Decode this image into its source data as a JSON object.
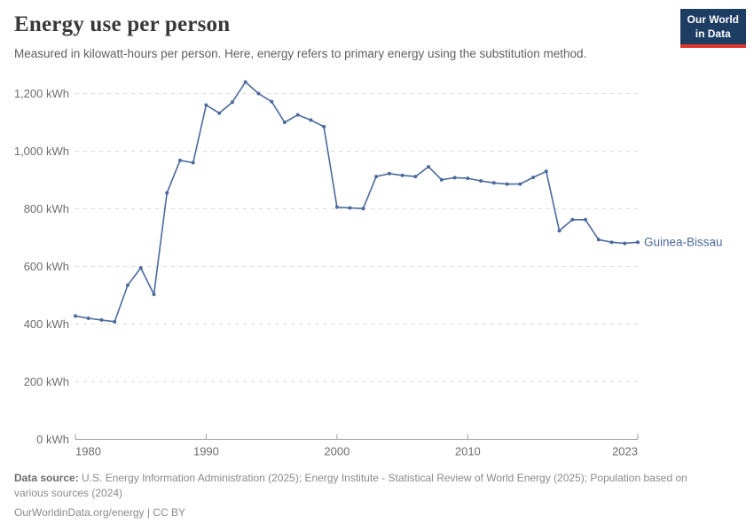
{
  "header": {
    "title": "Energy use per person",
    "subtitle": "Measured in kilowatt-hours per person. Here, energy refers to primary energy using the substitution method.",
    "logo": {
      "line1": "Our World",
      "line2": "in Data"
    }
  },
  "chart_data": {
    "type": "line",
    "title": "Energy use per person",
    "entity": "Guinea-Bissau",
    "unit": "kWh",
    "x": [
      1980,
      1981,
      1982,
      1983,
      1984,
      1985,
      1986,
      1987,
      1988,
      1989,
      1990,
      1991,
      1992,
      1993,
      1994,
      1995,
      1996,
      1997,
      1998,
      1999,
      2000,
      2001,
      2002,
      2003,
      2004,
      2005,
      2006,
      2007,
      2008,
      2009,
      2010,
      2011,
      2012,
      2013,
      2014,
      2015,
      2016,
      2017,
      2018,
      2019,
      2020,
      2021,
      2022,
      2023
    ],
    "values": [
      428,
      420,
      414,
      408,
      535,
      595,
      503,
      855,
      968,
      960,
      1160,
      1132,
      1170,
      1240,
      1200,
      1172,
      1100,
      1126,
      1108,
      1085,
      806,
      803,
      801,
      912,
      922,
      916,
      912,
      946,
      901,
      908,
      906,
      897,
      890,
      886,
      886,
      909,
      930,
      724,
      762,
      762,
      693,
      684,
      680,
      684
    ],
    "ylim": [
      0,
      1260
    ],
    "yticks": [
      0,
      200,
      400,
      600,
      800,
      1000,
      1200
    ],
    "ytick_suffix": " kWh",
    "xticks": [
      1980,
      1990,
      2000,
      2010,
      2023
    ],
    "grid": "horizontal-dashed",
    "legend_position": "line-end-label",
    "line_color": "#4c6a9c",
    "marker": "dot"
  },
  "footer": {
    "source_label": "Data source:",
    "source_text": " U.S. Energy Information Administration (2025); Energy Institute - Statistical Review of World Energy (2025); Population based on various sources (2024)",
    "link_text": "OurWorldinData.org/energy | CC BY"
  },
  "colors": {
    "line": "#4c6a9c",
    "logo_background": "#1d3d63",
    "logo_accent": "#e0362c",
    "gridline": "#dadada",
    "axis_text": "#6e6e6e",
    "baseline": "#9e9e9e"
  }
}
